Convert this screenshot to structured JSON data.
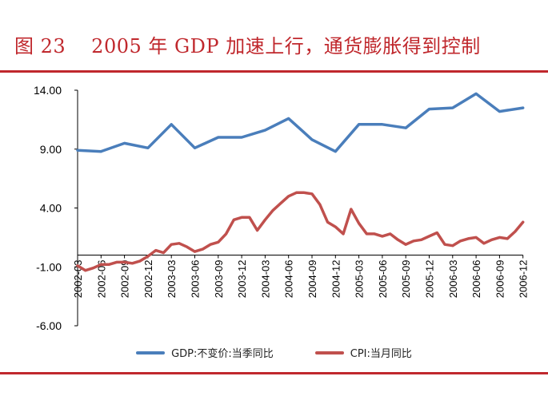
{
  "figure": {
    "label": "图 23",
    "title": "2005 年 GDP 加速上行，通货膨胀得到控制"
  },
  "chart_data": {
    "type": "line",
    "title": "2005 年 GDP 加速上行，通货膨胀得到控制",
    "xlabel": "",
    "ylabel": "",
    "ylim": [
      -6,
      14
    ],
    "yticks": [
      14,
      9,
      4,
      -1,
      -6
    ],
    "ytick_labels": [
      "14.00",
      "9.00",
      "4.00",
      "-1.00",
      "-6.00"
    ],
    "x_tick_labels": [
      "2002-03",
      "2002-06",
      "2002-09",
      "2002-12",
      "2003-03",
      "2003-06",
      "2003-09",
      "2003-12",
      "2004-03",
      "2004-06",
      "2004-09",
      "2004-12",
      "2005-03",
      "2005-06",
      "2005-09",
      "2005-12",
      "2006-03",
      "2006-06",
      "2006-09",
      "2006-12"
    ],
    "series": [
      {
        "name": "GDP:不变价:当季同比",
        "color": "#4a7ebb",
        "x": [
          0,
          1,
          2,
          3,
          4,
          5,
          6,
          7,
          8,
          9,
          10,
          11,
          12,
          13,
          14,
          15,
          16,
          17,
          18,
          19
        ],
        "values": [
          8.9,
          8.8,
          9.5,
          9.1,
          11.1,
          9.1,
          10.0,
          10.0,
          10.6,
          11.6,
          9.8,
          8.8,
          11.1,
          11.1,
          10.8,
          12.4,
          12.5,
          13.7,
          12.2,
          12.5
        ]
      },
      {
        "name": "CPI:当月同比",
        "color": "#c0504d",
        "x": [
          0,
          0.333,
          0.667,
          1,
          1.333,
          1.667,
          2,
          2.333,
          2.667,
          3,
          3.333,
          3.667,
          4,
          4.333,
          4.667,
          5,
          5.333,
          5.667,
          6,
          6.333,
          6.667,
          7,
          7.333,
          7.667,
          8,
          8.333,
          8.667,
          9,
          9.333,
          9.667,
          10,
          10.333,
          10.667,
          11,
          11.333,
          11.667,
          12,
          12.333,
          12.667,
          13,
          13.333,
          13.667,
          14,
          14.333,
          14.667,
          15,
          15.333,
          15.667,
          16,
          16.333,
          16.667,
          17,
          17.333,
          17.667,
          18,
          18.333,
          18.667,
          19
        ],
        "values": [
          -0.9,
          -1.3,
          -1.1,
          -0.8,
          -0.8,
          -0.6,
          -0.6,
          -0.7,
          -0.5,
          -0.1,
          0.4,
          0.2,
          0.9,
          1.0,
          0.7,
          0.3,
          0.5,
          0.9,
          1.1,
          1.8,
          3.0,
          3.2,
          3.2,
          2.1,
          3.0,
          3.8,
          4.4,
          5.0,
          5.3,
          5.3,
          5.2,
          4.3,
          2.8,
          2.4,
          1.8,
          3.9,
          2.7,
          1.8,
          1.8,
          1.6,
          1.8,
          1.3,
          0.9,
          1.2,
          1.3,
          1.6,
          1.9,
          0.9,
          0.8,
          1.2,
          1.4,
          1.5,
          1.0,
          1.3,
          1.5,
          1.4,
          2.0,
          2.8
        ]
      }
    ],
    "legend": [
      "GDP:不变价:当季同比",
      "CPI:当月同比"
    ],
    "legend_position": "bottom",
    "grid": false
  }
}
